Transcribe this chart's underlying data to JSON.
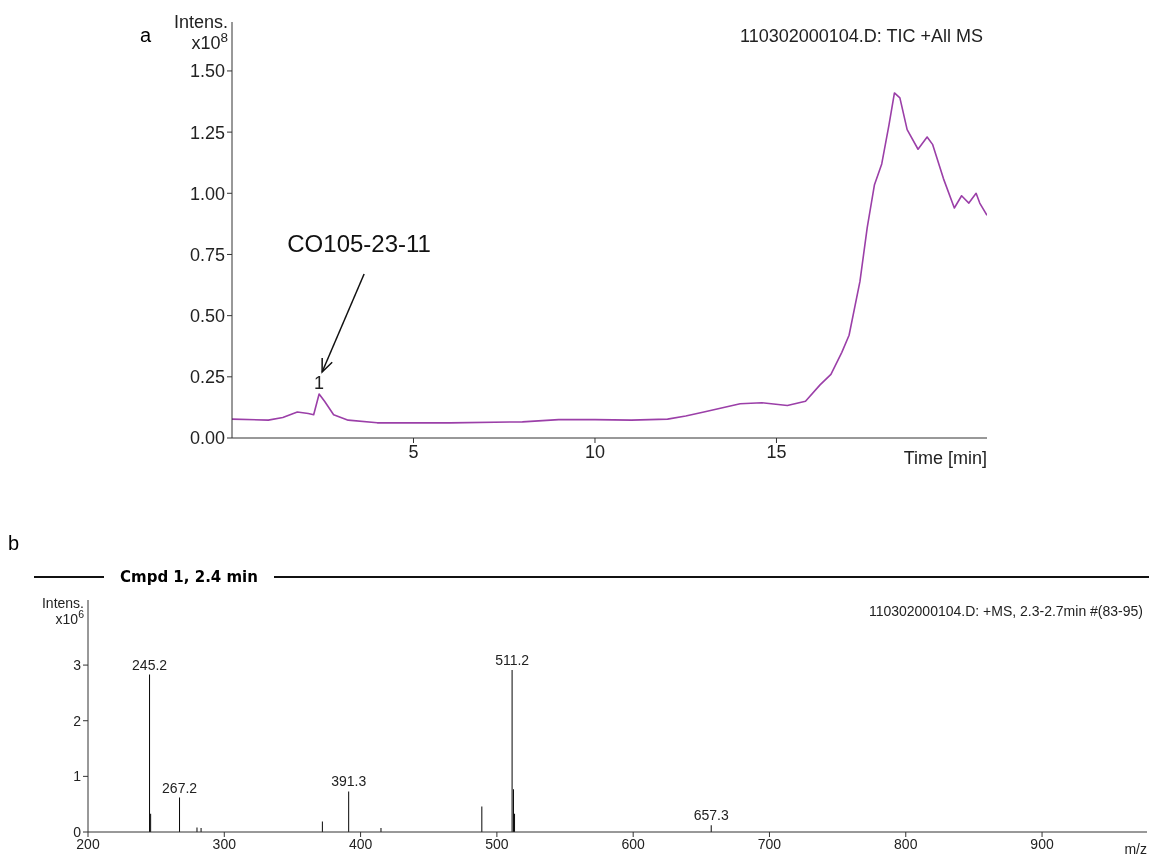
{
  "chart_data": [
    {
      "type": "line",
      "title": "a",
      "ylabel": "Intens.\nx10$^{8}$",
      "xlabel": "Time [min]",
      "x": [
        0,
        1,
        1.4,
        1.8,
        2.1,
        2.25,
        2.4,
        2.55,
        2.8,
        3.2,
        4,
        6,
        8,
        9,
        10,
        11,
        12,
        12.5,
        13,
        14,
        14.6,
        15.3,
        15.8,
        16.2,
        16.5,
        16.8,
        17,
        17.3,
        17.5,
        17.7,
        17.9,
        18.1,
        18.25,
        18.4,
        18.6,
        18.9,
        19.15,
        19.3,
        19.6,
        19.9,
        20.1,
        20.3,
        20.5,
        20.6,
        20.8
      ],
      "series": [
        {
          "color": "#9b3fa8",
          "values": [
            0.077,
            0.073,
            0.084,
            0.106,
            0.1,
            0.095,
            0.18,
            0.15,
            0.095,
            0.073,
            0.062,
            0.062,
            0.066,
            0.075,
            0.075,
            0.073,
            0.077,
            0.09,
            0.106,
            0.14,
            0.144,
            0.133,
            0.15,
            0.217,
            0.26,
            0.35,
            0.42,
            0.64,
            0.86,
            1.035,
            1.12,
            1.28,
            1.41,
            1.39,
            1.26,
            1.18,
            1.23,
            1.2,
            1.06,
            0.94,
            0.99,
            0.96,
            1.0,
            0.96,
            0.91
          ]
        }
      ],
      "xlim": [
        0,
        20.8
      ],
      "xticks": [
        5,
        10,
        15
      ],
      "ylim": [
        0,
        1.7
      ],
      "yticks": [
        {
          "value": 0,
          "label": "0.00"
        },
        {
          "value": 0.25,
          "label": "0.25"
        },
        {
          "value": 0.5,
          "label": "0.50"
        },
        {
          "value": 0.75,
          "label": "0.75"
        },
        {
          "value": 1,
          "label": "1.00"
        },
        {
          "value": 1.25,
          "label": "1.25"
        },
        {
          "value": 1.5,
          "label": "1.50"
        }
      ],
      "grid": false,
      "legend": false,
      "marker": "none",
      "line_style": "solid",
      "annotations": [
        "110302000104.D: TIC +All MS",
        {
          "text": "1",
          "x": 2.4,
          "y": 0.18
        },
        "CO105-23-11"
      ]
    },
    {
      "type": "bar",
      "title": "b",
      "subtitle": "Cmpd 1, 2.4 min",
      "ylabel": "Intens.\nx10$^{6}$",
      "xlabel": "m/z",
      "x": [
        245.2,
        246,
        267.2,
        280,
        283,
        372,
        391.3,
        415,
        489,
        511.2,
        512.2,
        513,
        657.3
      ],
      "values": [
        2.83,
        0.33,
        0.62,
        0.08,
        0.07,
        0.19,
        0.73,
        0.07,
        0.46,
        2.91,
        0.77,
        0.33,
        0.12
      ],
      "color": "#000000",
      "xlim": [
        200,
        977
      ],
      "xticks": [
        200,
        300,
        400,
        500,
        600,
        700,
        800,
        900
      ],
      "ylim": [
        0,
        4.17
      ],
      "yticks": [
        0,
        1,
        2,
        3
      ],
      "grid": false,
      "legend": false,
      "annotations": [
        "110302000104.D: +MS, 2.3-2.7min #(83-95)",
        {
          "text": "245.2",
          "x": 245.2,
          "y": 2.83
        },
        {
          "text": "267.2",
          "x": 267.2,
          "y": 0.62
        },
        {
          "text": "391.3",
          "x": 391.3,
          "y": 0.73
        },
        {
          "text": "511.2",
          "x": 511.2,
          "y": 2.91
        },
        {
          "text": "657.3",
          "x": 657.3,
          "y": 0.12
        }
      ]
    }
  ]
}
